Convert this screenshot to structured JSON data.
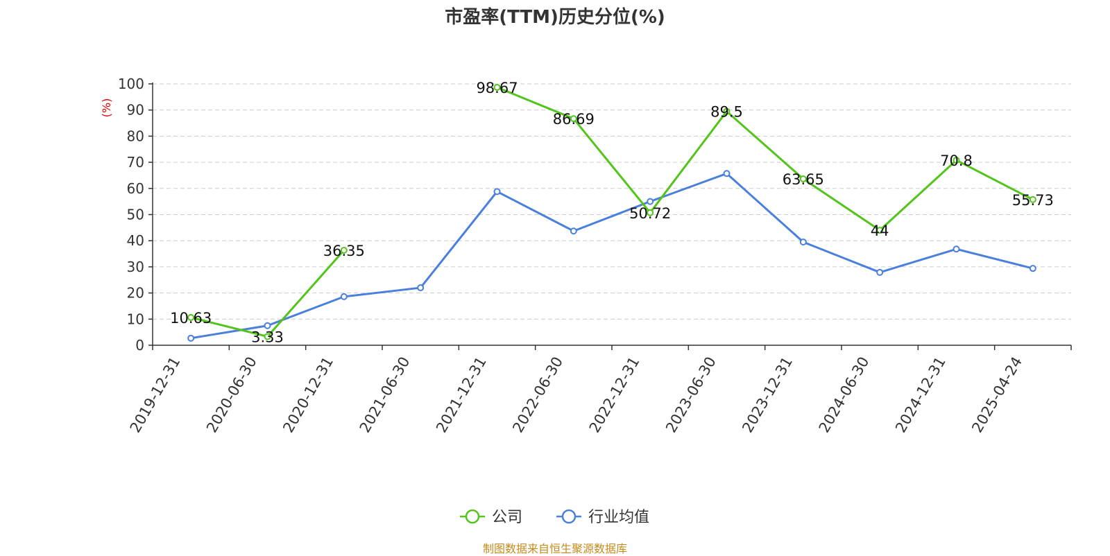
{
  "chart_data": {
    "type": "line",
    "title": "市盈率(TTM)历史分位(%)",
    "ylabel": "(%)",
    "ylim": [
      0,
      100
    ],
    "yticks": [
      0,
      10,
      20,
      30,
      40,
      50,
      60,
      70,
      80,
      90,
      100
    ],
    "categories": [
      "2019-12-31",
      "2020-06-30",
      "2020-12-31",
      "2021-06-30",
      "2021-12-31",
      "2022-06-30",
      "2022-12-31",
      "2023-06-30",
      "2023-12-31",
      "2024-06-30",
      "2024-12-31",
      "2025-04-24"
    ],
    "series": [
      {
        "name": "公司",
        "color": "#52c41a",
        "values": [
          10.63,
          3.33,
          36.35,
          null,
          98.67,
          86.69,
          50.72,
          89.5,
          63.65,
          44,
          70.8,
          55.73
        ],
        "labels": [
          "10.63",
          "3.33",
          "36.35",
          "",
          "98.67",
          "86.69",
          "50.72",
          "89.5",
          "63.65",
          "44",
          "70.8",
          "55.73"
        ]
      },
      {
        "name": "行业均值",
        "color": "#4a7fdc",
        "values": [
          2.7,
          7.5,
          18.6,
          22,
          58.8,
          43.7,
          55,
          65.7,
          39.5,
          27.9,
          36.8,
          29.4
        ]
      }
    ],
    "grid": true,
    "legend": "bottom-center"
  },
  "source": "制图数据来自恒生聚源数据库",
  "colors": {
    "axis": "#333333",
    "grid": "#cccccc",
    "source": "#c38b1d"
  }
}
